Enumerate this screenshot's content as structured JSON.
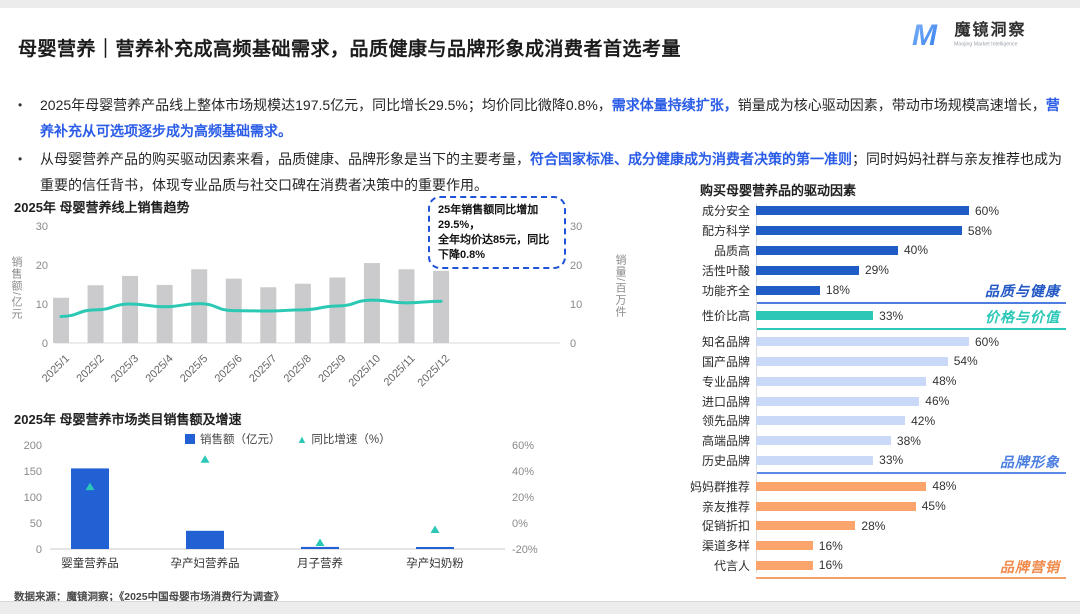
{
  "page": {
    "title": "母婴营养｜营养补充成高频基础需求，品质健康与品牌形象成消费者首选考量",
    "logo": {
      "name": "魔镜洞察",
      "subtitle": "Moojing Market Intelligence"
    },
    "source_note": "数据来源：魔镜洞察；《2025中国母婴市场消费行为调查》"
  },
  "colors": {
    "accent_text": "#2a5ce8",
    "trend_bar": "#cbcbcd",
    "trend_line": "#2bc8b4",
    "cat_bar": "#2261d3",
    "cat_marker": "#2bc8b8",
    "axis_gray": "#8a8a8a"
  },
  "bullets": [
    {
      "segments": [
        {
          "text": "2025年母婴营养产品线上整体市场规模达197.5亿元，同比增长29.5%；均价同比微降0.8%，",
          "accent": false
        },
        {
          "text": "需求体量持续扩张，",
          "accent": true
        },
        {
          "text": "销量成为核心驱动因素，带动市场规模高速增长，",
          "accent": false
        },
        {
          "text": "营养补充从可选项逐步成为高频基础需求。",
          "accent": true
        }
      ]
    },
    {
      "segments": [
        {
          "text": "从母婴营养产品的购买驱动因素来看，品质健康、品牌形象是当下的主要考量，",
          "accent": false
        },
        {
          "text": "符合国家标准、成分健康成为消费者决策的第一准则",
          "accent": true
        },
        {
          "text": "；同时妈妈社群与亲友推荐也成为重要的信任背书，体现专业品质与社交口碑在消费者决策中的重要作用。",
          "accent": false
        }
      ]
    }
  ],
  "chart_data": [
    {
      "id": "trend",
      "type": "bar",
      "title": "2025年 母婴营养线上销售趋势",
      "categories": [
        "2025/1",
        "2025/2",
        "2025/3",
        "2025/4",
        "2025/5",
        "2025/6",
        "2025/7",
        "2025/8",
        "2025/9",
        "2025/10",
        "2025/11",
        "2025/12"
      ],
      "series": [
        {
          "name": "销售额",
          "type": "bar",
          "axis": "left",
          "values": [
            11.6,
            14.8,
            17.2,
            14.9,
            18.9,
            16.5,
            14.3,
            15.2,
            16.8,
            20.5,
            18.9,
            18.5
          ]
        },
        {
          "name": "销量",
          "type": "line",
          "axis": "right",
          "values": [
            6.8,
            8.5,
            10.0,
            9.3,
            10.1,
            8.3,
            8.2,
            8.5,
            9.5,
            11.0,
            10.3,
            10.7
          ]
        }
      ],
      "left_axis": {
        "label": "销售额/亿元",
        "ticks": [
          0,
          10,
          20,
          30
        ],
        "range": [
          0,
          30
        ]
      },
      "right_axis": {
        "label": "销量/百万件",
        "ticks": [
          0,
          10,
          20,
          30
        ],
        "range": [
          0,
          30
        ]
      },
      "annotation": "25年销售额同比增加29.5%，\n全年均价达85元，同比下降0.8%"
    },
    {
      "id": "category",
      "type": "bar",
      "title": "2025年 母婴营养市场类目销售额及增速",
      "categories": [
        "婴童营养品",
        "孕产妇营养品",
        "月子营养",
        "孕产妇奶粉"
      ],
      "series": [
        {
          "name": "销售额（亿元）",
          "type": "bar",
          "axis": "left",
          "values": [
            155,
            35,
            4,
            2
          ]
        },
        {
          "name": "同比增速（%）",
          "type": "scatter",
          "axis": "right",
          "values": [
            28,
            49,
            -15,
            -5
          ]
        }
      ],
      "left_axis": {
        "ticks": [
          0,
          50,
          100,
          150,
          200
        ],
        "range": [
          0,
          200
        ]
      },
      "right_axis": {
        "ticks": [
          "-20%",
          "0%",
          "20%",
          "40%",
          "60%"
        ],
        "range": [
          -20,
          60
        ]
      }
    },
    {
      "id": "drivers",
      "type": "bar",
      "title": "购买母婴营养品的驱动因素",
      "xlim": [
        0,
        60
      ],
      "groups": [
        {
          "label": "品质与健康",
          "color": "#2257c5",
          "bar_color": "#1f5cc5",
          "rule_color": "#4d7ddf",
          "items": [
            {
              "label": "成分安全",
              "value": 60
            },
            {
              "label": "配方科学",
              "value": 58
            },
            {
              "label": "品质高",
              "value": 40
            },
            {
              "label": "活性叶酸",
              "value": 29
            },
            {
              "label": "功能齐全",
              "value": 18
            }
          ]
        },
        {
          "label": "价格与价值",
          "color": "#2bc8b8",
          "bar_color": "#2bc8b8",
          "rule_color": "#2bc8b8",
          "items": [
            {
              "label": "性价比高",
              "value": 33
            }
          ]
        },
        {
          "label": "品牌形象",
          "color": "#4d7fe0",
          "bar_color": "#c9d9f7",
          "rule_color": "#5b8be8",
          "items": [
            {
              "label": "知名品牌",
              "value": 60
            },
            {
              "label": "国产品牌",
              "value": 54
            },
            {
              "label": "专业品牌",
              "value": 48
            },
            {
              "label": "进口品牌",
              "value": 46
            },
            {
              "label": "领先品牌",
              "value": 42
            },
            {
              "label": "高端品牌",
              "value": 38
            },
            {
              "label": "历史品牌",
              "value": 33
            }
          ]
        },
        {
          "label": "品牌营销",
          "color": "#f08a4b",
          "bar_color": "#fba46b",
          "rule_color": "#f5a06b",
          "items": [
            {
              "label": "妈妈群推荐",
              "value": 48
            },
            {
              "label": "亲友推荐",
              "value": 45
            },
            {
              "label": "促销折扣",
              "value": 28
            },
            {
              "label": "渠道多样",
              "value": 16
            },
            {
              "label": "代言人",
              "value": 16
            }
          ]
        }
      ]
    }
  ]
}
